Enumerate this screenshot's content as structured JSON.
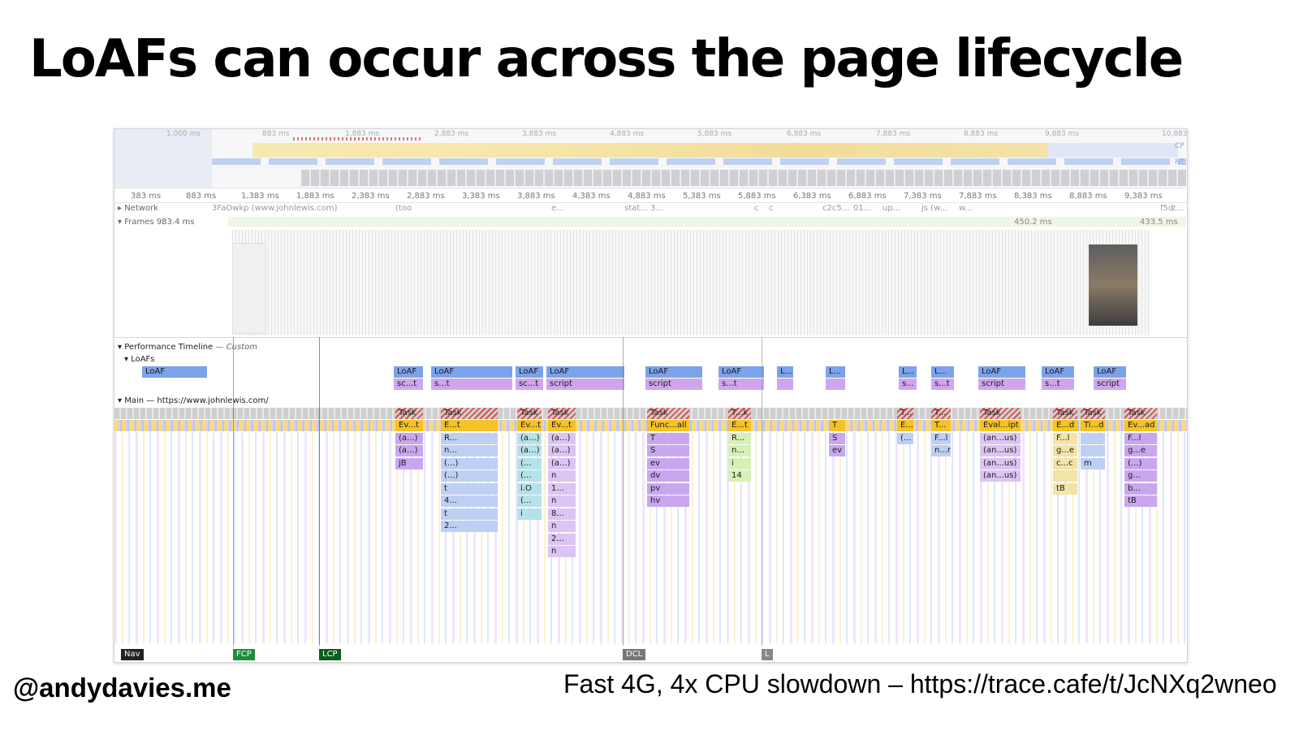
{
  "slide": {
    "title": "LoAFs can occur across the page lifecycle",
    "author_handle": "@andydavies.me",
    "caption": "Fast 4G, 4x CPU slowdown – https://trace.cafe/t/JcNXq2wneo"
  },
  "devtools": {
    "overview_ticks": [
      "1,000 ms",
      "883 ms",
      "1,883 ms",
      "2,883 ms",
      "3,883 ms",
      "4,883 ms",
      "5,883 ms",
      "6,883 ms",
      "7,883 ms",
      "8,883 ms",
      "9,883 ms",
      "10,883"
    ],
    "overview_right_labels": [
      "CP",
      "NE"
    ],
    "ruler_ticks": [
      "383 ms",
      "883 ms",
      "1,383 ms",
      "1,883 ms",
      "2,383 ms",
      "2,883 ms",
      "3,383 ms",
      "3,883 ms",
      "4,383 ms",
      "4,883 ms",
      "5,383 ms",
      "5,883 ms",
      "6,383 ms",
      "6,883 ms",
      "7,383 ms",
      "7,883 ms",
      "8,383 ms",
      "8,883 ms",
      "9,383 ms"
    ],
    "network": {
      "label": "Network",
      "items": [
        "3FaOwkp (www.johnlewis.com)",
        "(too",
        "e...",
        "stat...",
        "3...",
        "c",
        "c",
        "c2c5...",
        "01...",
        "up...",
        "js (w...",
        "w...",
        "f5d",
        "z..."
      ]
    },
    "frames": {
      "label": "Frames",
      "first_duration": "983.4 ms",
      "durations": [
        "450.2 ms",
        "433.5 ms"
      ]
    },
    "perf_timeline": {
      "label": "Performance Timeline",
      "custom": "— Custom",
      "loafs_label": "LoAFs",
      "loafs": [
        {
          "label": "LoAF",
          "sub": "sc...t"
        },
        {
          "label": "LoAF",
          "sub": "s...t"
        },
        {
          "label": "LoAF",
          "sub": "sc...t"
        },
        {
          "label": "LoAF",
          "sub": "script"
        },
        {
          "label": "LoAF",
          "sub": "script"
        },
        {
          "label": "LoAF",
          "sub": "s...t"
        },
        {
          "label": "L...",
          "sub": ""
        },
        {
          "label": "L...",
          "sub": ""
        },
        {
          "label": "L...",
          "sub": "s..."
        },
        {
          "label": "L...",
          "sub": "s...t"
        },
        {
          "label": "LoAF",
          "sub": "script"
        },
        {
          "label": "LoAF",
          "sub": "s...t"
        },
        {
          "label": "LoAF",
          "sub": "script"
        }
      ],
      "first_loaf": "LoAF"
    },
    "main": {
      "label": "Main — https://www.johnlewis.com/",
      "columns": [
        {
          "task": "Task",
          "rows": [
            "Ev...t",
            "(a...)",
            "(a...)",
            "jB"
          ]
        },
        {
          "task": "Task",
          "rows": [
            "E...t",
            "R...",
            "n...",
            "(...)",
            "(...)",
            "t",
            "4...",
            "t",
            "2..."
          ]
        },
        {
          "task": "Task",
          "rows": [
            "Ev...t",
            "(a...)",
            "(a...)",
            "(...",
            "(...",
            "i.O",
            "(...",
            "i"
          ]
        },
        {
          "task": "Task",
          "rows": [
            "Ev...t",
            "(a...)",
            "(a...)",
            "(a...)",
            "n",
            "1...",
            "n",
            "8...",
            "n",
            "2...",
            "n"
          ]
        },
        {
          "task": "Task",
          "rows": [
            "Func...all",
            "T",
            "S",
            "ev",
            "dv",
            "pv",
            "hv"
          ]
        },
        {
          "task": "T...k",
          "rows": [
            "E...t",
            "R...",
            "n...",
            "i",
            "14"
          ]
        },
        {
          "task": "",
          "rows": [
            "T",
            "S",
            "ev"
          ]
        },
        {
          "task": "T...",
          "rows": [
            "E...",
            "(..."
          ]
        },
        {
          "task": "T...",
          "rows": [
            "T...",
            "F...l",
            "n...r"
          ]
        },
        {
          "task": "Task",
          "rows": [
            "Eval...ipt",
            "(an...us)",
            "(an...us)",
            "(an...us)",
            "(an...us)"
          ]
        },
        {
          "task": "Task",
          "rows": [
            "E...d",
            "F...l",
            "g...e",
            "c...c",
            "",
            "tB"
          ]
        },
        {
          "task": "Task",
          "rows": [
            "Ti...d",
            "",
            "",
            "m"
          ]
        },
        {
          "task": "Task",
          "rows": [
            "Ev...ad",
            "F...l",
            "g...e",
            "(...)",
            "g...",
            "b...",
            "tB"
          ]
        }
      ]
    },
    "markers": [
      "Nav",
      "FCP",
      "LCP",
      "DCL",
      "L"
    ],
    "colors": {
      "loaf": "#7aa3ea",
      "script": "#cfa6ee",
      "event": "#f3c328",
      "function": "#c9a7f0",
      "nav": "#222222",
      "fcp": "#1e8e3e",
      "lcp": "#0b5d1e",
      "dcl": "#777777",
      "l": "#888888"
    }
  }
}
